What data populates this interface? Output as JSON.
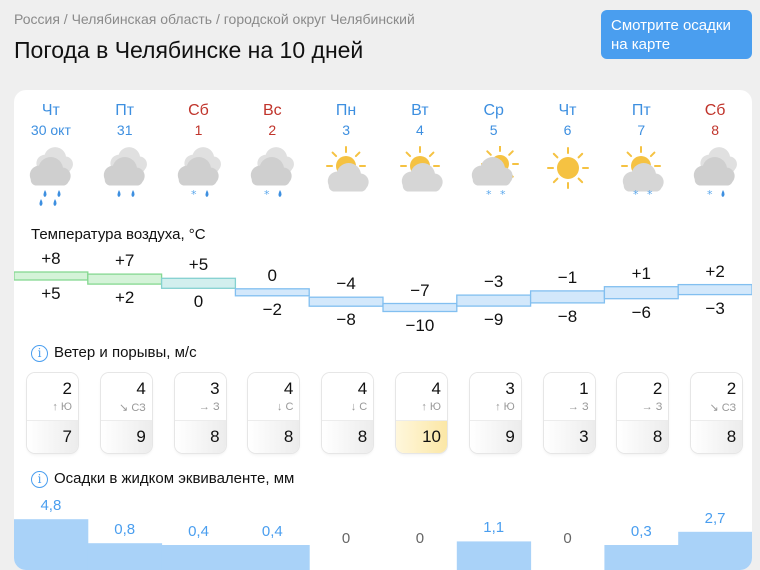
{
  "breadcrumb": "Россия / Челябинская область / городской округ Челябинский",
  "title": "Погода в Челябинске на 10 дней",
  "map_button": "Смотрите осадки на карте",
  "colors": {
    "weekday": "#3d8fe0",
    "weekend": "#c0342b",
    "accent": "#4a9eef",
    "highlight_gust": "#fbe7a6"
  },
  "sections": {
    "temperature": "Температура воздуха, °C",
    "wind": "Ветер и порывы, м/с",
    "precip": "Осадки в жидком эквиваленте, мм"
  },
  "days": [
    {
      "dow": "Чт",
      "date": "30 окт",
      "weekend": false,
      "icon": {
        "sun": "none",
        "cloud": "heavy",
        "precip": [
          "drop",
          "drop",
          "drop",
          "drop"
        ]
      },
      "tmax": "+8",
      "tmin": "+5",
      "max": 8,
      "min": 5,
      "wind": "2",
      "dir": "↑ Ю",
      "gust": "7",
      "precip": "4,8",
      "p": 4.8
    },
    {
      "dow": "Пт",
      "date": "31",
      "weekend": false,
      "icon": {
        "sun": "none",
        "cloud": "heavy",
        "precip": [
          "drop",
          "drop"
        ]
      },
      "tmax": "+7",
      "tmin": "+2",
      "max": 7,
      "min": 2,
      "wind": "4",
      "dir": "↘ СЗ",
      "gust": "9",
      "precip": "0,8",
      "p": 0.8
    },
    {
      "dow": "Сб",
      "date": "1",
      "weekend": true,
      "icon": {
        "sun": "none",
        "cloud": "heavy",
        "precip": [
          "snow",
          "drop"
        ]
      },
      "tmax": "+5",
      "tmin": "0",
      "max": 5,
      "min": 0,
      "wind": "3",
      "dir": "→ З",
      "gust": "8",
      "precip": "0,4",
      "p": 0.4
    },
    {
      "dow": "Вс",
      "date": "2",
      "weekend": true,
      "icon": {
        "sun": "none",
        "cloud": "heavy",
        "precip": [
          "snow",
          "drop"
        ]
      },
      "tmax": "0",
      "tmin": "−2",
      "max": 0,
      "min": -2,
      "wind": "4",
      "dir": "↓ С",
      "gust": "8",
      "precip": "0,4",
      "p": 0.4
    },
    {
      "dow": "Пн",
      "date": "3",
      "weekend": false,
      "icon": {
        "sun": "partial",
        "cloud": "light",
        "precip": []
      },
      "tmax": "−4",
      "tmin": "−8",
      "max": -4,
      "min": -8,
      "wind": "4",
      "dir": "↓ С",
      "gust": "8",
      "precip": "0",
      "p": 0
    },
    {
      "dow": "Вт",
      "date": "4",
      "weekend": false,
      "icon": {
        "sun": "partial",
        "cloud": "light",
        "precip": []
      },
      "tmax": "−7",
      "tmin": "−10",
      "max": -7,
      "min": -10,
      "wind": "4",
      "dir": "↑ Ю",
      "gust": "10",
      "gust_high": true,
      "precip": "0",
      "p": 0
    },
    {
      "dow": "Ср",
      "date": "5",
      "weekend": false,
      "icon": {
        "sun": "partial",
        "cloud": "heavy",
        "precip": [
          "snow",
          "snow"
        ]
      },
      "tmax": "−3",
      "tmin": "−9",
      "max": -3,
      "min": -9,
      "wind": "3",
      "dir": "↑ Ю",
      "gust": "9",
      "precip": "1,1",
      "p": 1.1
    },
    {
      "dow": "Чт",
      "date": "6",
      "weekend": false,
      "icon": {
        "sun": "full",
        "cloud": "none",
        "precip": []
      },
      "tmax": "−1",
      "tmin": "−8",
      "max": -1,
      "min": -8,
      "wind": "1",
      "dir": "→ З",
      "gust": "3",
      "precip": "0",
      "p": 0
    },
    {
      "dow": "Пт",
      "date": "7",
      "weekend": false,
      "icon": {
        "sun": "partial",
        "cloud": "light",
        "precip": [
          "snow",
          "snow"
        ]
      },
      "tmax": "+1",
      "tmin": "−6",
      "max": 1,
      "min": -6,
      "wind": "2",
      "dir": "→ З",
      "gust": "8",
      "precip": "0,3",
      "p": 0.3
    },
    {
      "dow": "Сб",
      "date": "8",
      "weekend": true,
      "icon": {
        "sun": "none",
        "cloud": "heavy",
        "precip": [
          "snow",
          "drop"
        ]
      },
      "tmax": "+2",
      "tmin": "−3",
      "max": 2,
      "min": -3,
      "wind": "2",
      "dir": "↘ СЗ",
      "gust": "8",
      "precip": "2,7",
      "p": 2.7
    }
  ]
}
